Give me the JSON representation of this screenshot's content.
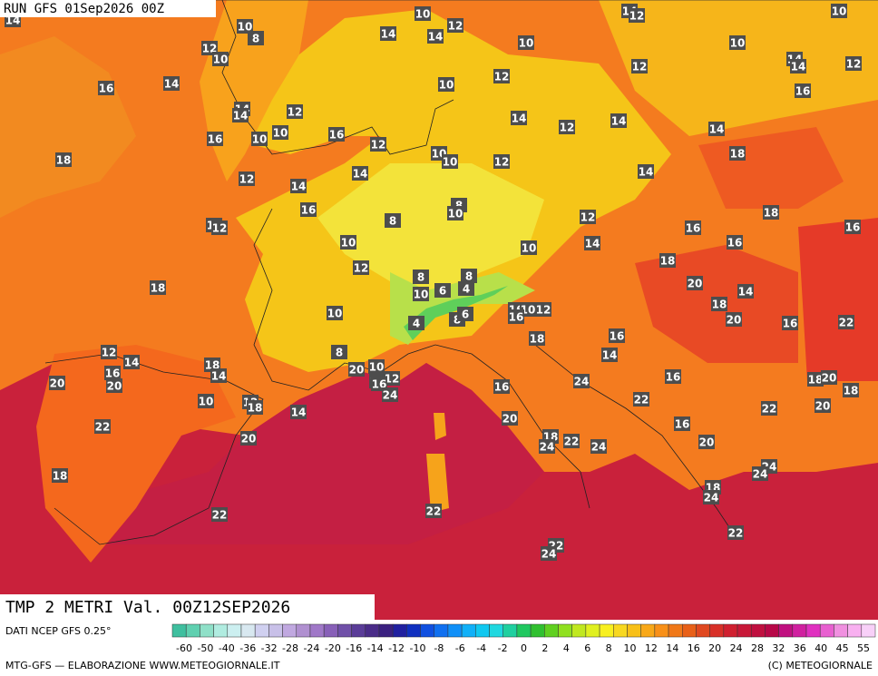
{
  "header": {
    "run": "RUN GFS 01Sep2026 00Z"
  },
  "footer": {
    "title": "TMP 2 METRI Val. 00Z12SEP2026",
    "source": "DATI NCEP GFS 0.25°",
    "credit": "MTG-GFS — ELABORAZIONE WWW.METEOGIORNALE.IT",
    "copyright": "(C) METEOGIORNALE"
  },
  "scale_labels": [
    -60,
    -50,
    -40,
    -36,
    -32,
    -28,
    -24,
    -20,
    -16,
    -14,
    -12,
    -10,
    -8,
    -6,
    -4,
    -2,
    0,
    2,
    4,
    6,
    8,
    10,
    12,
    14,
    16,
    20,
    24,
    28,
    32,
    36,
    40,
    45,
    55
  ],
  "map_labels": [
    14,
    10,
    8,
    10,
    12,
    14,
    14,
    10,
    14,
    12,
    10,
    12,
    10,
    10,
    14,
    14,
    12,
    12,
    12,
    16,
    14,
    10,
    16,
    14,
    12,
    14,
    14,
    12,
    14,
    14,
    16,
    10,
    10,
    16,
    12,
    10,
    10,
    12,
    18,
    18,
    14,
    12,
    14,
    14,
    16,
    8,
    10,
    12,
    8,
    14,
    12,
    18,
    16,
    16,
    16,
    10,
    14,
    10,
    18,
    12,
    18,
    20,
    8,
    8,
    14,
    10,
    6,
    4,
    18,
    10,
    8,
    6,
    16,
    10,
    12,
    20,
    16,
    22,
    4,
    16,
    16,
    18,
    12,
    8,
    14,
    18,
    14,
    20,
    10,
    16,
    14,
    12,
    12,
    20,
    16,
    18,
    20,
    18,
    16,
    24,
    24,
    20,
    10,
    16,
    12,
    18,
    22,
    22,
    20,
    14,
    20,
    22,
    16,
    20,
    18,
    22,
    24,
    24,
    20,
    24,
    24,
    18,
    18,
    24,
    22,
    22,
    22,
    22,
    24
  ]
}
